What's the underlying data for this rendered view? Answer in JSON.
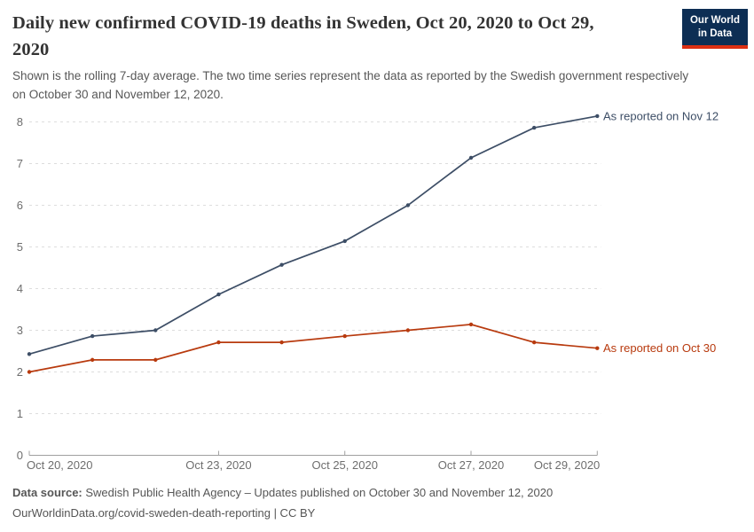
{
  "header": {
    "title": "Daily new confirmed COVID-19 deaths in Sweden, Oct 20, 2020 to Oct 29, 2020",
    "subtitle": "Shown is the rolling 7-day average. The two time series represent the data as reported by the Swedish government respectively on October 30 and November 12, 2020.",
    "logo_line1": "Our World",
    "logo_line2": "in Data"
  },
  "chart_data": {
    "type": "line",
    "x": [
      "Oct 20, 2020",
      "Oct 21, 2020",
      "Oct 22, 2020",
      "Oct 23, 2020",
      "Oct 24, 2020",
      "Oct 25, 2020",
      "Oct 26, 2020",
      "Oct 27, 2020",
      "Oct 28, 2020",
      "Oct 29, 2020"
    ],
    "x_ticks": [
      {
        "index": 0,
        "label": "Oct 20, 2020"
      },
      {
        "index": 3,
        "label": "Oct 23, 2020"
      },
      {
        "index": 5,
        "label": "Oct 25, 2020"
      },
      {
        "index": 7,
        "label": "Oct 27, 2020"
      },
      {
        "index": 9,
        "label": "Oct 29, 2020"
      }
    ],
    "series": [
      {
        "name": "As reported on Nov 12",
        "color": "#3d4e66",
        "values": [
          2.43,
          2.86,
          3.0,
          3.86,
          4.57,
          5.14,
          6.0,
          7.14,
          7.86,
          8.14
        ]
      },
      {
        "name": "As reported on Oct 30",
        "color": "#b83a0e",
        "values": [
          2.0,
          2.29,
          2.29,
          2.71,
          2.71,
          2.86,
          3.0,
          3.14,
          2.71,
          2.57
        ]
      }
    ],
    "yticks": [
      0,
      1,
      2,
      3,
      4,
      5,
      6,
      7,
      8
    ],
    "ylim": [
      0,
      8.5
    ],
    "grid": "horizontal-dashed",
    "legend_position": "end-of-line-labels"
  },
  "footer": {
    "data_source_label": "Data source:",
    "data_source_rest": " Swedish Public Health Agency – Updates published on October 30 and November 12, 2020",
    "link_line": "OurWorldinData.org/covid-sweden-death-reporting | CC BY"
  },
  "colors": {
    "series_nov12": "#3d4e66",
    "series_oct30": "#b83a0e",
    "logo_background": "#0d2e54",
    "logo_accent_bar": "#dc2f12",
    "gridline": "#dddddd",
    "axis_line": "#a0a0a0",
    "axis_text": "#6e6e6e",
    "title_text": "#333333",
    "subtitle_text": "#575757"
  }
}
